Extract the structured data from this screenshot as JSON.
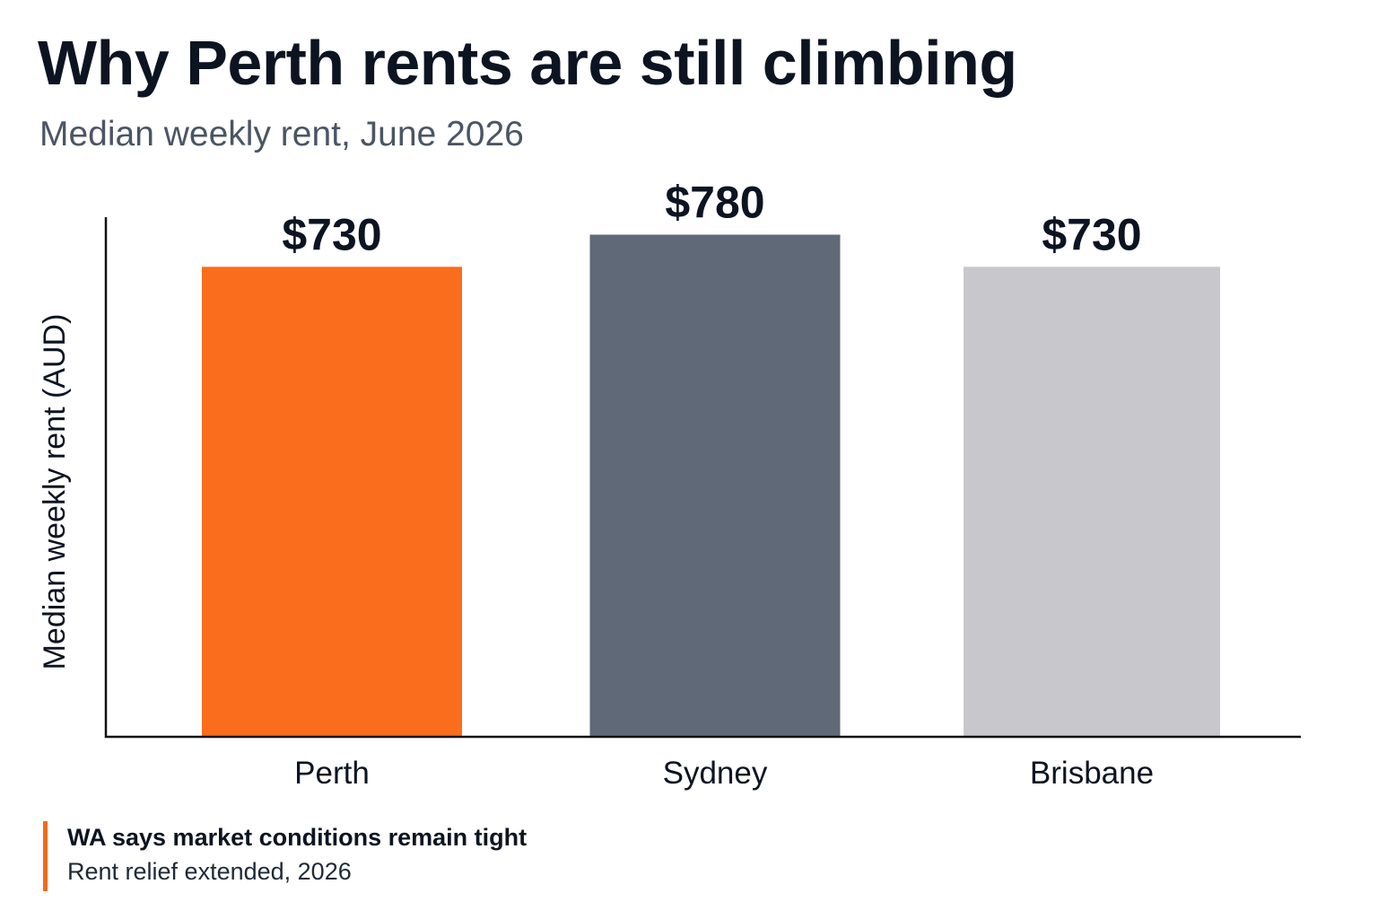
{
  "header": {
    "title": "Why Perth rents are still climbing",
    "subtitle": "Median weekly rent, June 2026"
  },
  "chart_data": {
    "type": "bar",
    "categories": [
      "Perth",
      "Sydney",
      "Brisbane"
    ],
    "values": [
      730,
      780,
      730
    ],
    "value_labels": [
      "$730",
      "$780",
      "$730"
    ],
    "colors": [
      "#fa6d1c",
      "#606977",
      "#c8c8cc"
    ],
    "ylabel": "Median weekly rent (AUD)",
    "xlabel": "",
    "ylim": [
      0,
      810
    ],
    "grid": false,
    "legend": "none"
  },
  "note": {
    "headline": "WA says market conditions remain tight",
    "detail": "Rent relief extended, 2026",
    "accent_color": "#f26b1d"
  }
}
